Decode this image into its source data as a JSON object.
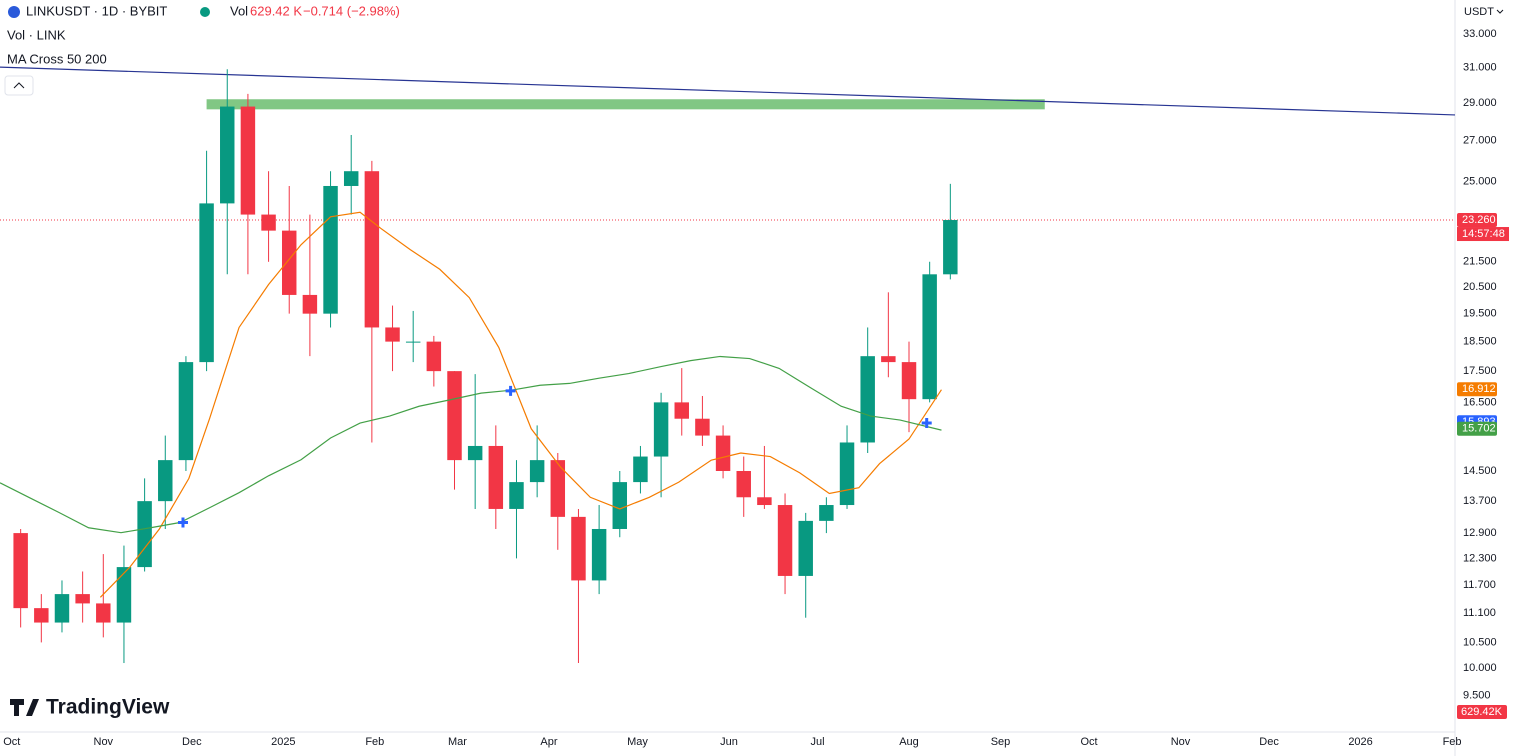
{
  "header": {
    "symbol": "LINKUSDT · 1D · BYBIT",
    "vol_label": "Vol",
    "vol_value": "629.42 K",
    "change": "−0.714 (−2.98%)"
  },
  "indicators": [
    "Vol · LINK",
    "MA Cross 50 200"
  ],
  "currency": "USDT",
  "brand": "TradingView",
  "chart_data": {
    "type": "candlestick",
    "log_scale": true,
    "grid": false,
    "up_color": "#089981",
    "down_color": "#f23645",
    "ylim": [
      8.87,
      35.2
    ],
    "yticks": [
      {
        "value": 33,
        "label": "33.000"
      },
      {
        "value": 31,
        "label": "31.000"
      },
      {
        "value": 29,
        "label": "29.000"
      },
      {
        "value": 27,
        "label": "27.000"
      },
      {
        "value": 25,
        "label": "25.000"
      },
      {
        "value": 21.5,
        "label": "21.500"
      },
      {
        "value": 20.5,
        "label": "20.500"
      },
      {
        "value": 19.5,
        "label": "19.500"
      },
      {
        "value": 18.5,
        "label": "18.500"
      },
      {
        "value": 17.5,
        "label": "17.500"
      },
      {
        "value": 16.5,
        "label": "16.500"
      },
      {
        "value": 14.5,
        "label": "14.500"
      },
      {
        "value": 13.7,
        "label": "13.700"
      },
      {
        "value": 12.9,
        "label": "12.900"
      },
      {
        "value": 12.3,
        "label": "12.300"
      },
      {
        "value": 11.7,
        "label": "11.700"
      },
      {
        "value": 11.1,
        "label": "11.100"
      },
      {
        "value": 10.5,
        "label": "10.500"
      },
      {
        "value": 10,
        "label": "10.000"
      },
      {
        "value": 9.5,
        "label": "9.500"
      }
    ],
    "xlim": [
      -4,
      489
    ],
    "xticks": [
      {
        "value": 0,
        "label": "Oct"
      },
      {
        "value": 31,
        "label": "Nov"
      },
      {
        "value": 61,
        "label": "Dec"
      },
      {
        "value": 92,
        "label": "2025"
      },
      {
        "value": 123,
        "label": "Feb"
      },
      {
        "value": 151,
        "label": "Mar"
      },
      {
        "value": 182,
        "label": "Apr"
      },
      {
        "value": 212,
        "label": "May"
      },
      {
        "value": 243,
        "label": "Jun"
      },
      {
        "value": 273,
        "label": "Jul"
      },
      {
        "value": 304,
        "label": "Aug"
      },
      {
        "value": 335,
        "label": "Sep"
      },
      {
        "value": 365,
        "label": "Oct"
      },
      {
        "value": 396,
        "label": "Nov"
      },
      {
        "value": 426,
        "label": "Dec"
      },
      {
        "value": 457,
        "label": "2026"
      },
      {
        "value": 488,
        "label": "Feb"
      }
    ],
    "candles": {
      "x": [
        3,
        10,
        17,
        24,
        31,
        38,
        45,
        52,
        59,
        66,
        73,
        80,
        87,
        94,
        101,
        108,
        115,
        122,
        129,
        136,
        143,
        150,
        157,
        164,
        171,
        178,
        185,
        192,
        199,
        206,
        213,
        220,
        227,
        234,
        241,
        248,
        255,
        262,
        269,
        276,
        283,
        290,
        297,
        304,
        311,
        318
      ],
      "open": [
        12.9,
        11.2,
        10.9,
        11.5,
        11.3,
        10.9,
        12.1,
        13.7,
        14.8,
        17.8,
        24.0,
        28.8,
        23.5,
        22.8,
        20.2,
        19.5,
        24.8,
        25.5,
        19.0,
        18.5,
        18.5,
        17.5,
        14.8,
        15.2,
        13.5,
        14.2,
        14.8,
        13.3,
        11.8,
        13.0,
        14.2,
        14.9,
        16.5,
        16.0,
        15.5,
        14.5,
        13.8,
        13.6,
        11.9,
        13.2,
        13.6,
        15.3,
        18.0,
        17.8,
        16.6,
        21.0
      ],
      "high": [
        13.0,
        11.5,
        11.8,
        12.0,
        12.4,
        12.6,
        14.3,
        15.5,
        18.0,
        26.5,
        30.9,
        29.5,
        25.5,
        24.8,
        23.5,
        25.5,
        27.3,
        26.0,
        19.8,
        19.6,
        18.7,
        17.5,
        17.4,
        15.8,
        14.8,
        15.8,
        15.0,
        13.5,
        13.6,
        14.5,
        15.2,
        16.8,
        17.6,
        16.7,
        15.8,
        14.9,
        15.2,
        13.9,
        13.4,
        13.8,
        15.8,
        19.0,
        20.3,
        18.5,
        21.5,
        24.9
      ],
      "low": [
        10.8,
        10.5,
        10.7,
        10.9,
        10.6,
        10.1,
        12.0,
        13.0,
        14.5,
        17.5,
        21.0,
        21.0,
        21.5,
        19.5,
        18.0,
        19.0,
        23.5,
        15.3,
        17.5,
        17.8,
        17.0,
        14.0,
        13.5,
        13.0,
        12.3,
        13.8,
        12.5,
        10.1,
        11.5,
        12.8,
        13.9,
        13.8,
        15.5,
        15.2,
        14.3,
        13.3,
        13.5,
        11.5,
        11.0,
        12.9,
        13.5,
        15.0,
        17.3,
        15.6,
        16.5,
        20.8
      ],
      "close": [
        11.2,
        10.9,
        11.5,
        11.3,
        10.9,
        12.1,
        13.7,
        14.8,
        17.8,
        24.0,
        28.8,
        23.5,
        22.8,
        20.2,
        19.5,
        24.8,
        25.5,
        19.0,
        18.5,
        18.5,
        17.5,
        14.8,
        15.2,
        13.5,
        14.2,
        14.8,
        13.3,
        11.8,
        13.0,
        14.2,
        14.9,
        16.5,
        16.0,
        15.5,
        14.5,
        13.8,
        13.6,
        11.9,
        13.2,
        13.6,
        15.3,
        18.0,
        17.8,
        16.6,
        21.0,
        23.26
      ]
    },
    "lines": [
      {
        "color": "#f57c00",
        "x": [
          30,
          40,
          50,
          60,
          67,
          77,
          87,
          98,
          108,
          118,
          125,
          135,
          145,
          155,
          165,
          176,
          186,
          196,
          206,
          216,
          226,
          237,
          247,
          257,
          267,
          277,
          287,
          294,
          304,
          315
        ],
        "values": [
          11.43,
          12.1,
          13.0,
          14.3,
          16.0,
          19.0,
          20.6,
          22.2,
          23.4,
          23.6,
          22.9,
          22.0,
          21.2,
          20.1,
          18.3,
          15.7,
          14.6,
          13.8,
          13.5,
          13.8,
          14.2,
          14.8,
          15.0,
          14.9,
          14.45,
          13.9,
          14.05,
          14.7,
          15.4,
          16.9
        ]
      },
      {
        "color": "#43a047",
        "x": [
          -4,
          6,
          16,
          26,
          37,
          47,
          57,
          67,
          77,
          87,
          98,
          108,
          118,
          128,
          138,
          148,
          159,
          169,
          179,
          189,
          199,
          209,
          220,
          230,
          240,
          250,
          260,
          271,
          281,
          291,
          301,
          315
        ],
        "values": [
          14.18,
          13.79,
          13.41,
          13.03,
          12.91,
          13.03,
          13.16,
          13.53,
          13.92,
          14.37,
          14.81,
          15.43,
          15.87,
          16.08,
          16.38,
          16.57,
          16.79,
          16.88,
          17.04,
          17.1,
          17.27,
          17.42,
          17.65,
          17.85,
          17.99,
          17.92,
          17.59,
          16.94,
          16.38,
          16.08,
          15.96,
          15.66
        ]
      }
    ],
    "crosses": {
      "x": [
        58,
        169,
        310
      ],
      "values": [
        13.16,
        16.86,
        15.87
      ]
    },
    "trendline": {
      "color": "#283593",
      "x": [
        -4,
        489
      ],
      "values": [
        31.02,
        28.35
      ]
    },
    "zone": {
      "color": "#81c784",
      "x": [
        66,
        350
      ],
      "top": 29.2,
      "bottom": 28.65
    },
    "price_labels": [
      {
        "value": 23.26,
        "label": "23.260",
        "color": "#f23645"
      },
      {
        "value": 16.912,
        "label": "16.912",
        "color": "#f57c00"
      },
      {
        "value": 15.893,
        "label": "15.893",
        "color": "#2962ff"
      },
      {
        "value": 15.702,
        "label": "15.702",
        "color": "#43a047"
      }
    ],
    "countdown": "14:57:48",
    "volume_label": "629.42K"
  }
}
